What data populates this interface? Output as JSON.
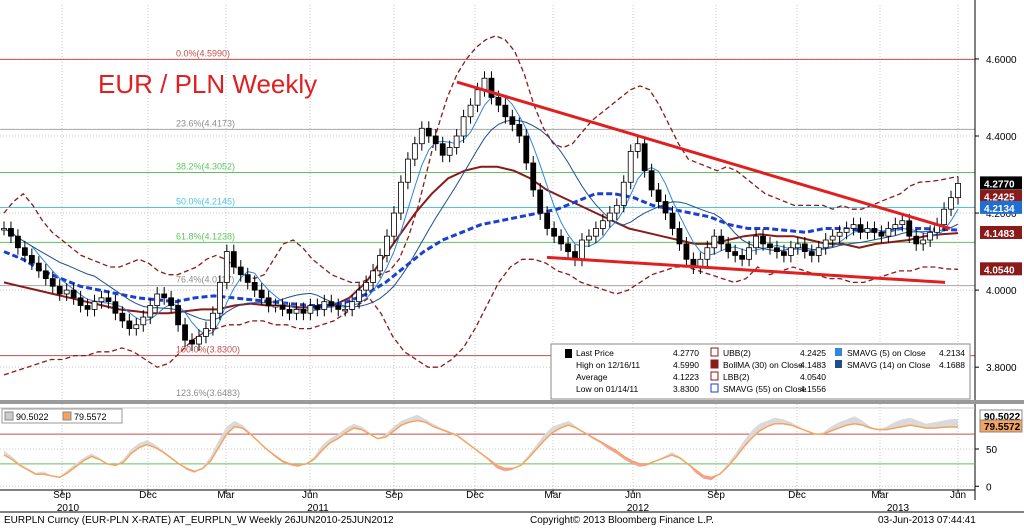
{
  "footer": {
    "security": "EURPLN Curncy (EUR-PLN X-RATE) AT_EURPLN_W  Weekly 26JUN2010-25JUN2012",
    "copyright": "Copyright© 2013 Bloomberg Finance L.P.",
    "timestamp": "03-Jun-2013 07:44:41"
  },
  "chart_data": [
    {
      "type": "candlestick",
      "title": "EUR / PLN Weekly",
      "x_tick_labels": {
        "months": [
          "Sep",
          "Dec",
          "Mar",
          "Jun",
          "Sep",
          "Dec",
          "Mar",
          "Jun",
          "Sep",
          "Dec",
          "Mar",
          "Jun"
        ],
        "years": [
          "2010",
          "2011",
          "2012",
          "2013"
        ]
      },
      "y_tick_labels": [
        "4.6000",
        "4.4000",
        "4.2000",
        "4.0000",
        "3.8000"
      ],
      "ylim": [
        3.72,
        4.74
      ],
      "fib_levels": [
        {
          "label": "0.0%(4.5990)",
          "value": 4.599,
          "color": "#c0504d"
        },
        {
          "label": "23.6%(4.4173)",
          "value": 4.4173,
          "color": "#a6a6a6"
        },
        {
          "label": "38.2%(4.3052)",
          "value": 4.3052,
          "color": "#5fc45f"
        },
        {
          "label": "50.0%(4.2145)",
          "value": 4.2145,
          "color": "#4fc3e0"
        },
        {
          "label": "61.8%(4.1238)",
          "value": 4.1238,
          "color": "#5fc45f"
        },
        {
          "label": "76.4%(4.0117)",
          "value": 4.0117,
          "color": "#a6a6a6"
        },
        {
          "label": "100.0%(3.8300)",
          "value": 3.83,
          "color": "#c0504d"
        },
        {
          "label": "123.6%(3.6483)",
          "value": 3.6483,
          "color": "#a6a6a6"
        }
      ],
      "price_tags": [
        {
          "label": "4.2770",
          "value": 4.277,
          "color": "#000000",
          "text_color": "#ffffff"
        },
        {
          "label": "4.2425",
          "value": 4.2425,
          "color": "#8b1a1a",
          "text_color": "#ffffff"
        },
        {
          "label": "4.2134",
          "value": 4.2134,
          "color": "#1f6fd1",
          "text_color": "#ffffff"
        },
        {
          "label": "4.1483",
          "value": 4.1483,
          "color": "#8b1a1a",
          "text_color": "#ffffff"
        },
        {
          "label": "4.0540",
          "value": 4.054,
          "color": "#8b1a1a",
          "text_color": "#ffffff"
        }
      ],
      "legend": {
        "col1": [
          {
            "label": "Last Price",
            "value": "4.2770"
          },
          {
            "label": "High on 12/16/11",
            "value": "4.5990"
          },
          {
            "label": "Average",
            "value": "4.1223"
          },
          {
            "label": "Low on 01/14/11",
            "value": "3.8300"
          }
        ],
        "col2": [
          {
            "label": "UBB(2)",
            "value": "4.2425"
          },
          {
            "label": "BollMA (30) on Close",
            "value": "4.1483"
          },
          {
            "label": "LBB(2)",
            "value": "4.0540"
          },
          {
            "label": "SMAVG (55) on Close",
            "value": "4.1556"
          }
        ],
        "col3": [
          {
            "label": "SMAVG (5) on Close",
            "value": "4.2134"
          },
          {
            "label": "SMAVG (14) on Close",
            "value": "4.1688"
          }
        ]
      },
      "series": [
        {
          "name": "Last Price",
          "kind": "candles",
          "values": [
            4.16,
            4.14,
            4.11,
            4.09,
            4.07,
            4.05,
            4.03,
            4.01,
            3.99,
            4.0,
            3.98,
            3.96,
            3.95,
            3.97,
            3.98,
            3.97,
            3.94,
            3.92,
            3.9,
            3.91,
            3.93,
            3.96,
            3.99,
            3.98,
            3.96,
            3.91,
            3.87,
            3.86,
            3.88,
            3.9,
            3.94,
            4.02,
            4.1,
            4.06,
            4.04,
            4.02,
            4.0,
            3.98,
            3.96,
            3.96,
            3.95,
            3.94,
            3.95,
            3.94,
            3.96,
            3.95,
            3.97,
            3.96,
            3.95,
            3.95,
            3.97,
            4.0,
            4.02,
            4.05,
            4.09,
            4.14,
            4.2,
            4.28,
            4.34,
            4.38,
            4.42,
            4.4,
            4.38,
            4.35,
            4.37,
            4.4,
            4.45,
            4.48,
            4.52,
            4.55,
            4.5,
            4.48,
            4.45,
            4.43,
            4.4,
            4.33,
            4.26,
            4.2,
            4.16,
            4.14,
            4.12,
            4.1,
            4.08,
            4.13,
            4.14,
            4.16,
            4.18,
            4.2,
            4.22,
            4.28,
            4.36,
            4.38,
            4.31,
            4.26,
            4.23,
            4.2,
            4.16,
            4.12,
            4.08,
            4.06,
            4.08,
            4.11,
            4.14,
            4.12,
            4.1,
            4.09,
            4.08,
            4.11,
            4.14,
            4.12,
            4.11,
            4.1,
            4.09,
            4.11,
            4.12,
            4.1,
            4.09,
            4.11,
            4.13,
            4.14,
            4.15,
            4.16,
            4.17,
            4.15,
            4.16,
            4.15,
            4.14,
            4.16,
            4.17,
            4.18,
            4.14,
            4.12,
            4.13,
            4.15,
            4.17,
            4.21,
            4.24,
            4.277
          ]
        },
        {
          "name": "UBB(2)",
          "kind": "line",
          "style": "dashed",
          "color": "#8b1a1a",
          "values": [
            4.2,
            4.23,
            4.25,
            4.22,
            4.18,
            4.15,
            4.13,
            4.11,
            4.09,
            4.08,
            4.07,
            4.06,
            4.06,
            4.07,
            4.08,
            4.07,
            4.05,
            4.04,
            4.04,
            4.05,
            4.06,
            4.08,
            4.09,
            4.08,
            4.06,
            4.04,
            4.03,
            4.04,
            4.08,
            4.12,
            4.13,
            4.11,
            4.08,
            4.06,
            4.04,
            4.03,
            4.02,
            4.02,
            4.03,
            4.04,
            4.05,
            4.08,
            4.14,
            4.22,
            4.32,
            4.42,
            4.5,
            4.56,
            4.6,
            4.63,
            4.65,
            4.66,
            4.65,
            4.62,
            4.56,
            4.48,
            4.42,
            4.38,
            4.37,
            4.38,
            4.41,
            4.44,
            4.46,
            4.48,
            4.5,
            4.52,
            4.53,
            4.52,
            4.48,
            4.43,
            4.38,
            4.34,
            4.33,
            4.32,
            4.31,
            4.32,
            4.31,
            4.29,
            4.27,
            4.25,
            4.24,
            4.23,
            4.22,
            4.22,
            4.22,
            4.22,
            4.21,
            4.22,
            4.21,
            4.21,
            4.22,
            4.23,
            4.24,
            4.25,
            4.27,
            4.28,
            4.282,
            4.285,
            4.29,
            4.295
          ]
        },
        {
          "name": "LBB(2)",
          "kind": "line",
          "style": "dashed",
          "color": "#8b1a1a",
          "values": [
            3.78,
            3.79,
            3.8,
            3.81,
            3.82,
            3.82,
            3.83,
            3.83,
            3.84,
            3.84,
            3.85,
            3.84,
            3.82,
            3.8,
            3.81,
            3.84,
            3.87,
            3.89,
            3.9,
            3.91,
            3.91,
            3.92,
            3.92,
            3.91,
            3.91,
            3.9,
            3.9,
            3.91,
            3.92,
            3.94,
            3.96,
            3.98,
            3.94,
            3.88,
            3.84,
            3.82,
            3.8,
            3.8,
            3.82,
            3.85,
            3.9,
            3.96,
            4.02,
            4.06,
            4.08,
            4.08,
            4.07,
            4.05,
            4.04,
            4.02,
            4.01,
            4.0,
            3.99,
            4.0,
            4.02,
            4.04,
            4.05,
            4.06,
            4.06,
            4.05,
            4.04,
            4.03,
            4.02,
            4.03,
            4.06,
            4.04,
            4.05,
            4.06,
            4.05,
            4.04,
            4.03,
            4.03,
            4.02,
            4.02,
            4.03,
            4.04,
            4.05,
            4.05,
            4.06,
            4.06,
            4.055,
            4.054
          ]
        },
        {
          "name": "BollMA (30) on Close",
          "kind": "line",
          "style": "solid",
          "color": "#8b1a1a",
          "values": [
            4.02,
            4.01,
            4.0,
            3.99,
            3.98,
            3.97,
            3.96,
            3.95,
            3.945,
            3.94,
            3.94,
            3.945,
            3.95,
            3.95,
            3.96,
            3.965,
            3.96,
            3.96,
            3.955,
            3.955,
            3.96,
            3.98,
            4.02,
            4.08,
            4.14,
            4.2,
            4.25,
            4.29,
            4.31,
            4.32,
            4.32,
            4.31,
            4.29,
            4.26,
            4.24,
            4.22,
            4.2,
            4.18,
            4.16,
            4.15,
            4.14,
            4.13,
            4.12,
            4.12,
            4.13,
            4.14,
            4.145,
            4.14,
            4.14,
            4.13,
            4.12,
            4.12,
            4.11,
            4.12,
            4.125,
            4.13,
            4.14,
            4.145,
            4.148
          ]
        },
        {
          "name": "SMAVG (55) on Close",
          "kind": "line",
          "style": "dashed",
          "color": "#1a3fd1",
          "values": [
            4.1,
            4.08,
            4.05,
            4.03,
            4.01,
            4.0,
            3.99,
            3.98,
            3.975,
            3.97,
            3.98,
            3.985,
            3.98,
            3.975,
            3.97,
            3.965,
            3.96,
            3.96,
            3.97,
            3.99,
            4.02,
            4.06,
            4.1,
            4.13,
            4.15,
            4.17,
            4.18,
            4.19,
            4.2,
            4.21,
            4.23,
            4.25,
            4.25,
            4.24,
            4.22,
            4.21,
            4.2,
            4.19,
            4.17,
            4.16,
            4.16,
            4.155,
            4.15,
            4.16,
            4.16,
            4.155,
            4.15,
            4.16,
            4.16,
            4.158,
            4.156
          ]
        }
      ]
    },
    {
      "type": "line",
      "title": "",
      "legend": [
        {
          "label": "90.5022",
          "color": "#cccccc"
        },
        {
          "label": "79.5572",
          "color": "#f4a460"
        }
      ],
      "y_tick_labels": [
        "50",
        "0"
      ],
      "ylim": [
        -5,
        105
      ],
      "levels": [
        {
          "value": 70,
          "color": "#c0504d"
        },
        {
          "value": 30,
          "color": "#5fc45f"
        }
      ],
      "price_tags": [
        {
          "label": "90.5022",
          "value": 90.5022,
          "color": "#ffffff",
          "text_color": "#000000"
        },
        {
          "label": "79.5572",
          "value": 79.5572,
          "color": "#f4a460",
          "text_color": "#000000"
        }
      ],
      "series": [
        {
          "name": "90.5022",
          "kind": "area",
          "color": "#cccccc",
          "values": [
            48,
            40,
            30,
            24,
            18,
            20,
            14,
            12,
            22,
            30,
            38,
            44,
            38,
            30,
            28,
            36,
            50,
            58,
            62,
            56,
            48,
            40,
            30,
            22,
            18,
            26,
            40,
            62,
            80,
            88,
            82,
            72,
            60,
            50,
            40,
            32,
            28,
            26,
            30,
            40,
            55,
            64,
            70,
            78,
            84,
            80,
            72,
            64,
            70,
            80,
            88,
            92,
            96,
            90,
            84,
            78,
            74,
            70,
            60,
            52,
            44,
            34,
            24,
            20,
            22,
            30,
            42,
            56,
            70,
            80,
            84,
            88,
            80,
            72,
            64,
            58,
            50,
            44,
            36,
            30,
            26,
            28,
            34,
            40,
            46,
            40,
            30,
            18,
            10,
            8,
            16,
            30,
            44,
            60,
            74,
            84,
            88,
            92,
            90,
            86,
            80,
            74,
            70,
            72,
            80,
            86,
            90,
            94,
            88,
            80,
            76,
            80,
            86,
            90,
            92,
            88,
            84,
            86,
            88,
            90,
            90.5
          ]
        },
        {
          "name": "79.5572",
          "kind": "line",
          "color": "#f4a460",
          "values": [
            42,
            36,
            28,
            22,
            16,
            16,
            14,
            12,
            18,
            26,
            34,
            40,
            36,
            30,
            28,
            32,
            44,
            52,
            56,
            52,
            46,
            38,
            30,
            24,
            20,
            24,
            34,
            52,
            70,
            80,
            78,
            70,
            60,
            50,
            42,
            34,
            30,
            28,
            30,
            36,
            48,
            58,
            64,
            72,
            78,
            76,
            70,
            64,
            66,
            74,
            82,
            86,
            88,
            86,
            80,
            76,
            72,
            68,
            60,
            52,
            44,
            36,
            28,
            24,
            24,
            28,
            38,
            50,
            62,
            72,
            78,
            82,
            78,
            72,
            66,
            60,
            54,
            48,
            40,
            34,
            30,
            30,
            34,
            38,
            42,
            38,
            30,
            22,
            14,
            12,
            16,
            26,
            38,
            52,
            64,
            74,
            80,
            84,
            84,
            82,
            78,
            74,
            70,
            70,
            74,
            78,
            82,
            84,
            82,
            78,
            76,
            76,
            78,
            80,
            82,
            80,
            78,
            78,
            79,
            79.5,
            79.5572
          ]
        }
      ]
    }
  ]
}
